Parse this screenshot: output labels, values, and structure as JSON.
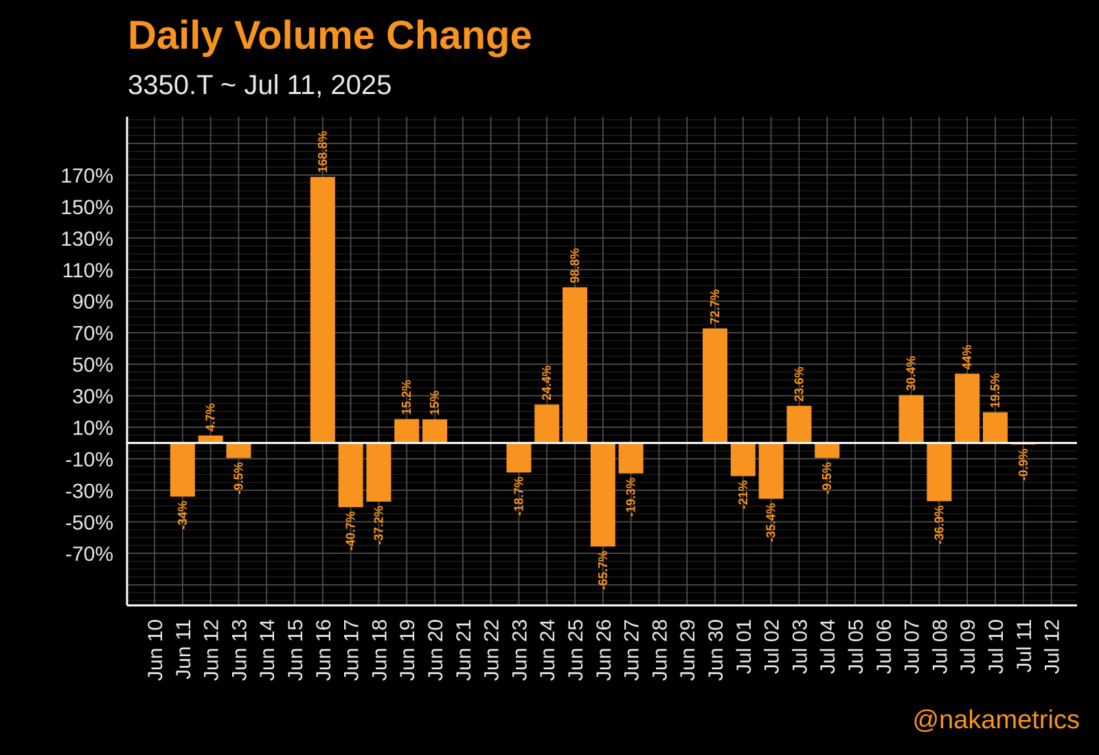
{
  "header": {
    "title": "Daily Volume Change",
    "subtitle": "3350.T ~ Jul 11, 2025"
  },
  "watermark": "@nakametrics",
  "colors": {
    "bar": "#f7931e",
    "label": "#f7931e",
    "background": "#000000",
    "grid": "#4d4d4d",
    "axis": "#ffffff",
    "text": "#e8e8e8"
  },
  "chart_data": {
    "type": "bar",
    "title": "Daily Volume Change",
    "subtitle": "3350.T ~ Jul 11, 2025",
    "xlabel": "",
    "ylabel": "",
    "ylim": [
      -103,
      207
    ],
    "grid": true,
    "yticks": [
      -70,
      -50,
      -30,
      -10,
      10,
      30,
      50,
      70,
      90,
      110,
      130,
      150,
      170
    ],
    "ytick_labels": [
      "-70%",
      "-50%",
      "-30%",
      "-10%",
      "10%",
      "30%",
      "50%",
      "70%",
      "90%",
      "110%",
      "130%",
      "150%",
      "170%"
    ],
    "categories": [
      "Jun 10",
      "Jun 11",
      "Jun 12",
      "Jun 13",
      "Jun 14",
      "Jun 15",
      "Jun 16",
      "Jun 17",
      "Jun 18",
      "Jun 19",
      "Jun 20",
      "Jun 21",
      "Jun 22",
      "Jun 23",
      "Jun 24",
      "Jun 25",
      "Jun 26",
      "Jun 27",
      "Jun 28",
      "Jun 29",
      "Jun 30",
      "Jul 01",
      "Jul 02",
      "Jul 03",
      "Jul 04",
      "Jul 05",
      "Jul 06",
      "Jul 07",
      "Jul 08",
      "Jul 09",
      "Jul 10",
      "Jul 11",
      "Jul 12"
    ],
    "values": [
      null,
      -34,
      4.7,
      -9.5,
      null,
      null,
      168.8,
      -40.7,
      -37.2,
      15.2,
      15,
      null,
      null,
      -18.7,
      24.4,
      98.8,
      -65.7,
      -19.3,
      null,
      null,
      72.7,
      -21,
      -35.4,
      23.6,
      -9.5,
      null,
      null,
      30.4,
      -36.9,
      44,
      19.5,
      -0.9,
      null
    ],
    "value_labels": [
      null,
      "-34%",
      "4.7%",
      "-9.5%",
      null,
      null,
      "168.8%",
      "-40.7%",
      "-37.2%",
      "15.2%",
      "15%",
      null,
      null,
      "-18.7%",
      "24.4%",
      "98.8%",
      "-65.7%",
      "-19.3%",
      null,
      null,
      "72.7%",
      "-21%",
      "-35.4%",
      "23.6%",
      "-9.5%",
      null,
      null,
      "30.4%",
      "-36.9%",
      "44%",
      "19.5%",
      "-0.9%",
      null
    ]
  }
}
